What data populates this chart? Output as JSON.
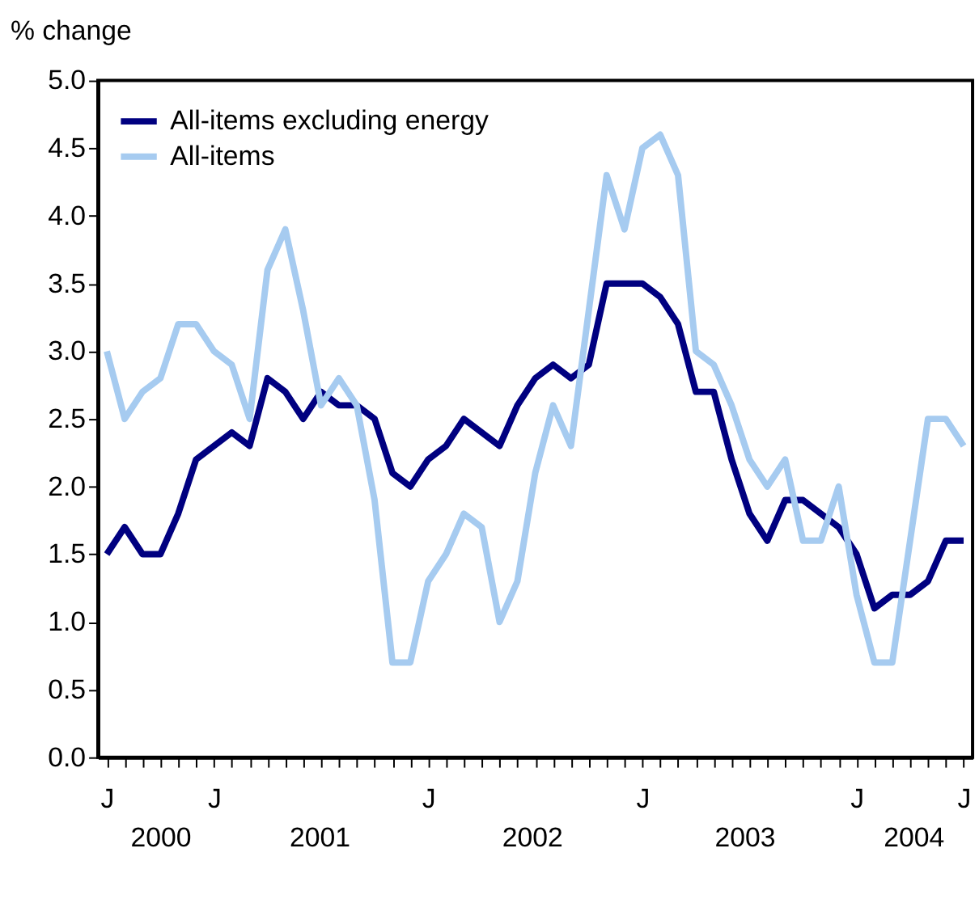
{
  "chart_data": {
    "type": "line",
    "ylabel": "% change",
    "categories": [
      "J",
      null,
      null,
      null,
      null,
      null,
      "J",
      null,
      null,
      null,
      null,
      null,
      null,
      null,
      null,
      null,
      null,
      null,
      "J",
      null,
      null,
      null,
      null,
      null,
      null,
      null,
      null,
      null,
      null,
      null,
      "J",
      null,
      null,
      null,
      null,
      null,
      null,
      null,
      null,
      null,
      null,
      null,
      "J",
      null,
      null,
      null,
      null,
      null,
      "J"
    ],
    "series": [
      {
        "name": "All-items excluding energy",
        "color": "#000080",
        "values": [
          1.5,
          1.7,
          1.5,
          1.5,
          1.8,
          2.2,
          2.3,
          2.4,
          2.3,
          2.8,
          2.7,
          2.5,
          2.7,
          2.6,
          2.6,
          2.5,
          2.1,
          2.0,
          2.2,
          2.3,
          2.5,
          2.4,
          2.3,
          2.6,
          2.8,
          2.9,
          2.8,
          2.9,
          3.5,
          3.5,
          3.5,
          3.4,
          3.2,
          2.7,
          2.7,
          2.2,
          1.8,
          1.6,
          1.9,
          1.9,
          1.8,
          1.7,
          1.5,
          1.1,
          1.2,
          1.2,
          1.3,
          1.6,
          1.6
        ]
      },
      {
        "name": "All-items",
        "color": "#a6cbf0",
        "values": [
          3.0,
          2.5,
          2.7,
          2.8,
          3.2,
          3.2,
          3.0,
          2.9,
          2.5,
          3.6,
          3.9,
          3.3,
          2.6,
          2.8,
          2.6,
          1.9,
          0.7,
          0.7,
          1.3,
          1.5,
          1.8,
          1.7,
          1.0,
          1.3,
          2.1,
          2.6,
          2.3,
          3.3,
          4.3,
          3.9,
          4.5,
          4.6,
          4.3,
          3.0,
          2.9,
          2.6,
          2.2,
          2.0,
          2.2,
          1.6,
          1.6,
          2.0,
          1.2,
          0.7,
          0.7,
          1.6,
          2.5,
          2.5,
          2.3
        ]
      }
    ],
    "x2lim": [
      "2000-06-01",
      "2004-07-12"
    ],
    "x2ticks": [
      {
        "value": "2000-09-16",
        "label": "2000"
      },
      {
        "value": "2001-06-16",
        "label": "2001"
      },
      {
        "value": "2002-06-16",
        "label": "2002"
      },
      {
        "value": "2003-06-16",
        "label": "2003"
      },
      {
        "value": "2004-04-01",
        "label": "2004"
      }
    ],
    "ylim": [
      0,
      5
    ],
    "yticks": [
      {
        "value": 0,
        "label": "0.0"
      },
      {
        "value": 0.5,
        "label": "0.5"
      },
      {
        "value": 1,
        "label": "1.0"
      },
      {
        "value": 1.5,
        "label": "1.5"
      },
      {
        "value": 2,
        "label": "2.0"
      },
      {
        "value": 2.5,
        "label": "2.5"
      },
      {
        "value": 3,
        "label": "3.0"
      },
      {
        "value": 3.5,
        "label": "3.5"
      },
      {
        "value": 4,
        "label": "4.0"
      },
      {
        "value": 4.5,
        "label": "4.5"
      },
      {
        "value": 5,
        "label": "5.0"
      }
    ],
    "grid": false,
    "legend": "top left",
    "line_style": "solid",
    "marker": "none"
  }
}
